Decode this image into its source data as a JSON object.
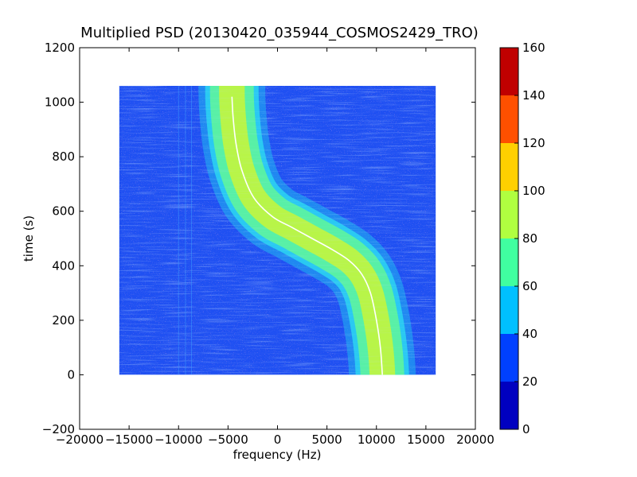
{
  "chart_data": {
    "type": "heatmap",
    "title": "Multiplied PSD (20130420_035944_COSMOS2429_TRO)",
    "xlabel": "frequency (Hz)",
    "ylabel": "time (s)",
    "xlim": [
      -20000,
      20000
    ],
    "ylim": [
      -200,
      1200
    ],
    "x_ticks": [
      -20000,
      -15000,
      -10000,
      -5000,
      0,
      5000,
      10000,
      15000,
      20000
    ],
    "x_tick_labels": [
      "−20000",
      "−15000",
      "−10000",
      "−5000",
      "0",
      "5000",
      "10000",
      "15000",
      "20000"
    ],
    "y_ticks": [
      -200,
      0,
      200,
      400,
      600,
      800,
      1000,
      1200
    ],
    "y_tick_labels": [
      "−200",
      "0",
      "200",
      "400",
      "600",
      "800",
      "1000",
      "1200"
    ],
    "data_extent": {
      "x": [
        -16000,
        16000
      ],
      "y": [
        0,
        1060
      ]
    },
    "trace": {
      "description": "Doppler curve of the satellite signal",
      "points": [
        [
          -4600,
          1020
        ],
        [
          -4500,
          950
        ],
        [
          -4200,
          850
        ],
        [
          -3600,
          750
        ],
        [
          -2400,
          650
        ],
        [
          -500,
          580
        ],
        [
          1500,
          540
        ],
        [
          3500,
          500
        ],
        [
          5500,
          460
        ],
        [
          7200,
          420
        ],
        [
          8500,
          370
        ],
        [
          9400,
          300
        ],
        [
          10000,
          200
        ],
        [
          10400,
          100
        ],
        [
          10600,
          0
        ]
      ],
      "band_halfwidth_hz": 2700
    },
    "colorbar": {
      "levels": [
        0,
        20,
        40,
        60,
        80,
        100,
        120,
        140,
        160
      ],
      "tick_labels": [
        "0",
        "20",
        "40",
        "60",
        "80",
        "100",
        "120",
        "140",
        "160"
      ],
      "colors": [
        "#0000c0",
        "#0040ff",
        "#00c0ff",
        "#40ffa0",
        "#b0ff40",
        "#ffd000",
        "#ff5000",
        "#c00000"
      ]
    },
    "colors": {
      "background_level": "#1f50f2",
      "noise_dark": "#4a3acb",
      "band_outer": "#29c9f2",
      "band_mid": "#58f0a6",
      "band_inner": "#b8f548",
      "trace_line": "#ffffff"
    },
    "grid": false
  }
}
